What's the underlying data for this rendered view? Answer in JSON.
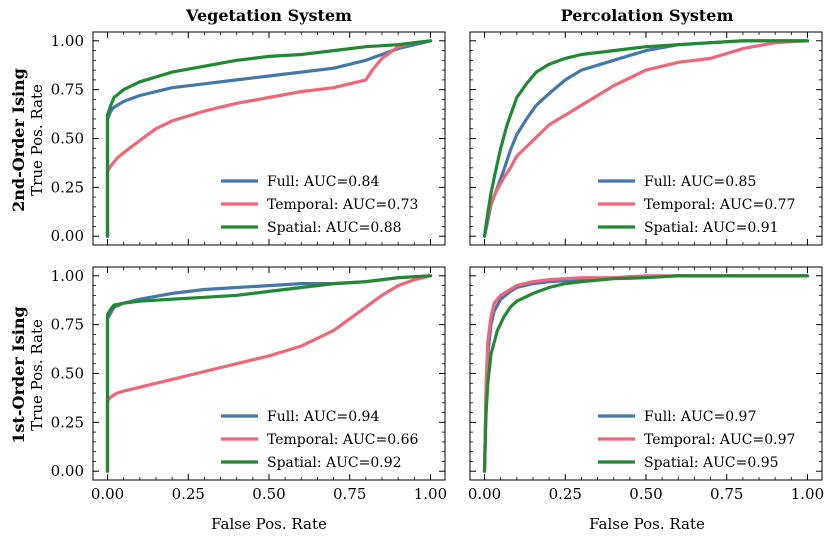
{
  "figure": {
    "column_titles": [
      "Vegetation System",
      "Percolation System"
    ],
    "row_titles": [
      "2nd-Order Ising",
      "1st-Order Ising"
    ],
    "ylabel": "True Pos. Rate",
    "xlabel": "False Pos. Rate",
    "xticks": [
      "0.00",
      "0.25",
      "0.50",
      "0.75",
      "1.00"
    ],
    "yticks": [
      "0.00",
      "0.25",
      "0.50",
      "0.75",
      "1.00"
    ]
  },
  "colors": {
    "Full": "#4477aa",
    "Temporal": "#ee6677",
    "Spatial": "#228833"
  },
  "chart_data": [
    {
      "type": "line",
      "title": "Vegetation System",
      "row": "2nd-Order Ising",
      "xlabel": "",
      "ylabel": "True Pos. Rate",
      "xlim": [
        0,
        1
      ],
      "ylim": [
        0,
        1
      ],
      "legend_position": "lower-right",
      "series": [
        {
          "name": "Full",
          "legend": "Full: AUC=0.84",
          "x": [
            0,
            0,
            0.01,
            0.02,
            0.05,
            0.1,
            0.2,
            0.3,
            0.4,
            0.5,
            0.6,
            0.7,
            0.8,
            0.9,
            1.0
          ],
          "y": [
            0,
            0.6,
            0.64,
            0.66,
            0.69,
            0.72,
            0.76,
            0.78,
            0.8,
            0.82,
            0.84,
            0.86,
            0.9,
            0.96,
            1.0
          ]
        },
        {
          "name": "Temporal",
          "legend": "Temporal: AUC=0.73",
          "x": [
            0,
            0,
            0.01,
            0.03,
            0.06,
            0.1,
            0.15,
            0.2,
            0.3,
            0.4,
            0.5,
            0.6,
            0.7,
            0.8,
            0.82,
            0.85,
            0.9,
            0.95,
            1.0
          ],
          "y": [
            0,
            0.33,
            0.36,
            0.4,
            0.44,
            0.49,
            0.55,
            0.59,
            0.64,
            0.68,
            0.71,
            0.74,
            0.76,
            0.8,
            0.85,
            0.91,
            0.97,
            0.99,
            1.0
          ]
        },
        {
          "name": "Spatial",
          "legend": "Spatial: AUC=0.88",
          "x": [
            0,
            0,
            0.01,
            0.02,
            0.05,
            0.1,
            0.2,
            0.3,
            0.4,
            0.5,
            0.6,
            0.7,
            0.8,
            0.9,
            1.0
          ],
          "y": [
            0,
            0.62,
            0.67,
            0.71,
            0.75,
            0.79,
            0.84,
            0.87,
            0.9,
            0.92,
            0.93,
            0.95,
            0.97,
            0.98,
            1.0
          ]
        }
      ]
    },
    {
      "type": "line",
      "title": "Percolation System",
      "row": "2nd-Order Ising",
      "xlabel": "",
      "ylabel": "",
      "xlim": [
        0,
        1
      ],
      "ylim": [
        0,
        1
      ],
      "legend_position": "lower-right",
      "series": [
        {
          "name": "Full",
          "legend": "Full: AUC=0.85",
          "x": [
            0,
            0.01,
            0.02,
            0.04,
            0.06,
            0.08,
            0.1,
            0.13,
            0.16,
            0.2,
            0.25,
            0.3,
            0.4,
            0.5,
            0.6,
            0.7,
            0.8,
            0.9,
            1.0
          ],
          "y": [
            0,
            0.08,
            0.16,
            0.25,
            0.34,
            0.44,
            0.52,
            0.6,
            0.67,
            0.73,
            0.8,
            0.85,
            0.9,
            0.95,
            0.98,
            0.99,
            1.0,
            1.0,
            1.0
          ]
        },
        {
          "name": "Temporal",
          "legend": "Temporal: AUC=0.77",
          "x": [
            0,
            0.01,
            0.02,
            0.04,
            0.06,
            0.08,
            0.1,
            0.15,
            0.2,
            0.25,
            0.3,
            0.35,
            0.4,
            0.5,
            0.6,
            0.7,
            0.8,
            0.9,
            1.0
          ],
          "y": [
            0,
            0.1,
            0.17,
            0.24,
            0.3,
            0.35,
            0.41,
            0.49,
            0.57,
            0.62,
            0.67,
            0.72,
            0.77,
            0.85,
            0.89,
            0.91,
            0.96,
            0.99,
            1.0
          ]
        },
        {
          "name": "Spatial",
          "legend": "Spatial: AUC=0.91",
          "x": [
            0,
            0.01,
            0.02,
            0.03,
            0.05,
            0.07,
            0.1,
            0.13,
            0.16,
            0.2,
            0.25,
            0.3,
            0.4,
            0.5,
            0.6,
            0.7,
            0.8,
            0.9,
            1.0
          ],
          "y": [
            0,
            0.12,
            0.22,
            0.3,
            0.45,
            0.57,
            0.71,
            0.78,
            0.84,
            0.88,
            0.91,
            0.93,
            0.95,
            0.97,
            0.98,
            0.99,
            1.0,
            1.0,
            1.0
          ]
        }
      ]
    },
    {
      "type": "line",
      "title": "",
      "row": "1st-Order Ising",
      "xlabel": "False Pos. Rate",
      "ylabel": "True Pos. Rate",
      "xlim": [
        0,
        1
      ],
      "ylim": [
        0,
        1
      ],
      "legend_position": "lower-right",
      "series": [
        {
          "name": "Full",
          "legend": "Full: AUC=0.94",
          "x": [
            0,
            0,
            0.01,
            0.02,
            0.05,
            0.1,
            0.2,
            0.3,
            0.4,
            0.5,
            0.6,
            0.7,
            0.8,
            0.9,
            1.0
          ],
          "y": [
            0,
            0.78,
            0.81,
            0.84,
            0.86,
            0.88,
            0.91,
            0.93,
            0.94,
            0.95,
            0.96,
            0.96,
            0.97,
            0.99,
            1.0
          ]
        },
        {
          "name": "Temporal",
          "legend": "Temporal: AUC=0.66",
          "x": [
            0,
            0,
            0.01,
            0.03,
            0.05,
            0.1,
            0.2,
            0.3,
            0.4,
            0.5,
            0.6,
            0.65,
            0.7,
            0.75,
            0.8,
            0.85,
            0.9,
            0.95,
            1.0
          ],
          "y": [
            0,
            0.36,
            0.38,
            0.4,
            0.41,
            0.43,
            0.47,
            0.51,
            0.55,
            0.59,
            0.64,
            0.68,
            0.72,
            0.78,
            0.84,
            0.9,
            0.95,
            0.98,
            1.0
          ]
        },
        {
          "name": "Spatial",
          "legend": "Spatial: AUC=0.92",
          "x": [
            0,
            0,
            0.01,
            0.02,
            0.05,
            0.1,
            0.2,
            0.3,
            0.4,
            0.5,
            0.6,
            0.7,
            0.8,
            0.9,
            1.0
          ],
          "y": [
            0,
            0.8,
            0.83,
            0.85,
            0.86,
            0.87,
            0.88,
            0.89,
            0.9,
            0.92,
            0.94,
            0.96,
            0.97,
            0.99,
            1.0
          ]
        }
      ]
    },
    {
      "type": "line",
      "title": "",
      "row": "1st-Order Ising",
      "xlabel": "False Pos. Rate",
      "ylabel": "",
      "xlim": [
        0,
        1
      ],
      "ylim": [
        0,
        1
      ],
      "legend_position": "lower-right",
      "series": [
        {
          "name": "Full",
          "legend": "Full: AUC=0.97",
          "x": [
            0,
            0.005,
            0.01,
            0.02,
            0.03,
            0.05,
            0.08,
            0.1,
            0.15,
            0.2,
            0.3,
            0.4,
            0.5,
            0.6,
            0.8,
            1.0
          ],
          "y": [
            0,
            0.4,
            0.6,
            0.75,
            0.82,
            0.88,
            0.92,
            0.94,
            0.96,
            0.97,
            0.98,
            0.99,
            0.995,
            1.0,
            1.0,
            1.0
          ]
        },
        {
          "name": "Temporal",
          "legend": "Temporal: AUC=0.97",
          "x": [
            0,
            0.005,
            0.01,
            0.02,
            0.03,
            0.05,
            0.08,
            0.1,
            0.15,
            0.2,
            0.3,
            0.4,
            0.5,
            0.6,
            0.8,
            1.0
          ],
          "y": [
            0,
            0.45,
            0.66,
            0.79,
            0.86,
            0.9,
            0.93,
            0.95,
            0.97,
            0.98,
            0.99,
            0.99,
            1.0,
            1.0,
            1.0,
            1.0
          ]
        },
        {
          "name": "Spatial",
          "legend": "Spatial: AUC=0.95",
          "x": [
            0,
            0.005,
            0.01,
            0.02,
            0.04,
            0.06,
            0.08,
            0.1,
            0.15,
            0.2,
            0.25,
            0.3,
            0.4,
            0.5,
            0.6,
            0.8,
            1.0
          ],
          "y": [
            0,
            0.3,
            0.45,
            0.6,
            0.72,
            0.79,
            0.84,
            0.87,
            0.91,
            0.94,
            0.96,
            0.97,
            0.985,
            0.99,
            1.0,
            1.0,
            1.0
          ]
        }
      ]
    }
  ]
}
